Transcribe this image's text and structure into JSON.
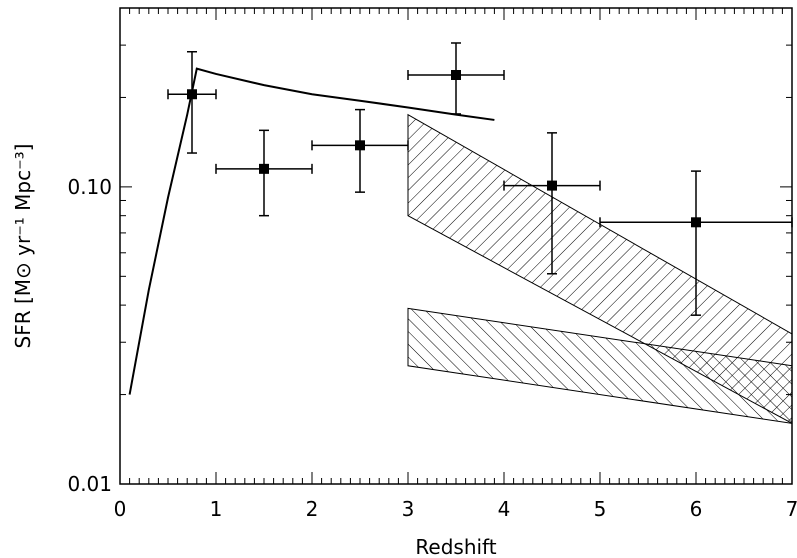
{
  "chart_data": {
    "type": "scatter",
    "xlabel": "Redshift",
    "ylabel": "SFR [M⊙ yr⁻¹ Mpc⁻³]",
    "xlim": [
      0,
      7
    ],
    "ylim": [
      0.01,
      0.4
    ],
    "yscale": "log",
    "grid": false,
    "x_ticks": [
      0,
      1,
      2,
      3,
      4,
      5,
      6,
      7
    ],
    "x_tick_labels": [
      "0",
      "1",
      "2",
      "3",
      "4",
      "5",
      "6",
      "7"
    ],
    "y_ticks": [
      0.01,
      0.1
    ],
    "y_tick_labels": [
      "0.01",
      "0.10"
    ],
    "series": [
      {
        "type": "errorbar",
        "marker": "filled-square",
        "points": [
          {
            "x": 0.75,
            "y": 0.205,
            "xerr": [
              0.25,
              0.25
            ],
            "yerr_low": 0.13,
            "yerr_high": 0.285
          },
          {
            "x": 1.5,
            "y": 0.115,
            "xerr": [
              0.5,
              0.5
            ],
            "yerr_low": 0.08,
            "yerr_high": 0.155
          },
          {
            "x": 2.5,
            "y": 0.138,
            "xerr": [
              0.5,
              0.5
            ],
            "yerr_low": 0.096,
            "yerr_high": 0.182
          },
          {
            "x": 3.5,
            "y": 0.238,
            "xerr": [
              0.5,
              0.5
            ],
            "yerr_low": 0.176,
            "yerr_high": 0.305
          },
          {
            "x": 4.5,
            "y": 0.101,
            "xerr": [
              0.5,
              0.5
            ],
            "yerr_low": 0.051,
            "yerr_high": 0.152
          },
          {
            "x": 6.0,
            "y": 0.076,
            "xerr": [
              1.0,
              1.0
            ],
            "yerr_low": 0.037,
            "yerr_high": 0.113
          }
        ]
      },
      {
        "type": "line",
        "x": [
          0.1,
          0.3,
          0.5,
          0.7,
          0.8,
          1.0,
          1.5,
          2.0,
          2.5,
          3.0,
          3.5,
          3.9
        ],
        "y": [
          0.02,
          0.045,
          0.092,
          0.175,
          0.25,
          0.24,
          0.22,
          0.205,
          0.195,
          0.185,
          0.175,
          0.168
        ]
      },
      {
        "type": "band",
        "hatch": "diagonal-forward",
        "x": [
          3,
          7
        ],
        "lower": [
          0.08,
          0.016
        ],
        "upper": [
          0.175,
          0.032
        ]
      },
      {
        "type": "band",
        "hatch": "diagonal-backward",
        "x": [
          3,
          7
        ],
        "lower": [
          0.025,
          0.016
        ],
        "upper": [
          0.039,
          0.025
        ]
      }
    ]
  }
}
